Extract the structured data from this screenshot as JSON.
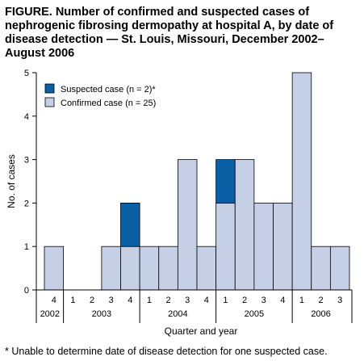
{
  "title": "FIGURE. Number of confirmed and suspected cases of nephrogenic fibrosing dermopathy at hospital A, by date of disease detection — St. Louis, Missouri, December 2002–August 2006",
  "footnote": "* Unable to determine date of disease detection for one suspected case.",
  "colors": {
    "suspected": "#0b5fa5",
    "confirmed": "#c5d0e6",
    "edge": "#000000"
  },
  "chart_data": {
    "type": "bar",
    "stacked": true,
    "xlabel": "Quarter and year",
    "ylabel": "No. of cases",
    "ylim": [
      0,
      5
    ],
    "yticks": [
      0,
      1,
      2,
      3,
      4,
      5
    ],
    "grid": false,
    "legend_position": "top-left",
    "categories": [
      "4",
      "1",
      "2",
      "3",
      "4",
      "1",
      "2",
      "3",
      "4",
      "1",
      "2",
      "3",
      "4",
      "1",
      "2",
      "3"
    ],
    "year_groups": [
      {
        "label": "2002",
        "count": 1
      },
      {
        "label": "2003",
        "count": 4
      },
      {
        "label": "2004",
        "count": 4
      },
      {
        "label": "2005",
        "count": 4
      },
      {
        "label": "2006",
        "count": 3
      }
    ],
    "series": [
      {
        "name": "Confirmed case (n = 25)",
        "key": "confirmed",
        "values": [
          1,
          0,
          0,
          1,
          1,
          1,
          1,
          3,
          1,
          2,
          3,
          2,
          2,
          5,
          1,
          1
        ]
      },
      {
        "name": "Suspected case (n = 2)*",
        "key": "suspected",
        "values": [
          0,
          0,
          0,
          0,
          1,
          0,
          0,
          0,
          0,
          1,
          0,
          0,
          0,
          0,
          0,
          0
        ]
      }
    ]
  }
}
